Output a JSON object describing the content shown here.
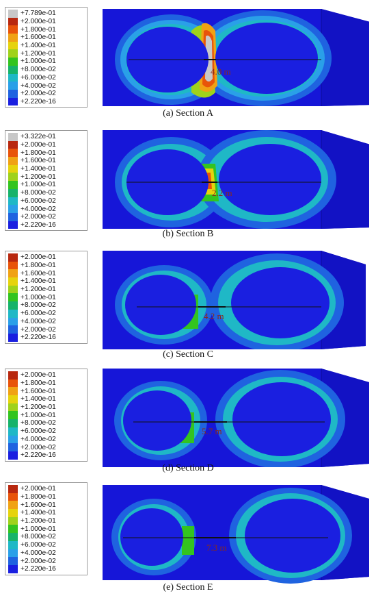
{
  "legend_labels": [
    "+2.000e-01",
    "+1.800e-01",
    "+1.600e-01",
    "+1.400e-01",
    "+1.200e-01",
    "+1.000e-01",
    "+8.000e-02",
    "+6.000e-02",
    "+4.000e-02",
    "+2.000e-02",
    "+2.220e-16"
  ],
  "legend_colors": [
    "#b8280f",
    "#e8540a",
    "#f0a214",
    "#e6d30d",
    "#9fd21b",
    "#33c41f",
    "#17b36a",
    "#1fb8c6",
    "#2aa0e8",
    "#1f63e0",
    "#1a1fe0"
  ],
  "legend_max_color": "#c8c8c8",
  "panels": [
    {
      "caption": "(a) Section A",
      "legend_max": "+7.789e-01",
      "distance": "4.0 m"
    },
    {
      "caption": "(b) Section B",
      "legend_max": "+3.322e-01",
      "distance": "2.2 m"
    },
    {
      "caption": "(c) Section C",
      "legend_max": "",
      "distance": "4.2 m"
    },
    {
      "caption": "(d) Section D",
      "legend_max": "",
      "distance": "5.7 m"
    },
    {
      "caption": "(e) Section E",
      "legend_max": "",
      "distance": "7.3 m"
    }
  ]
}
